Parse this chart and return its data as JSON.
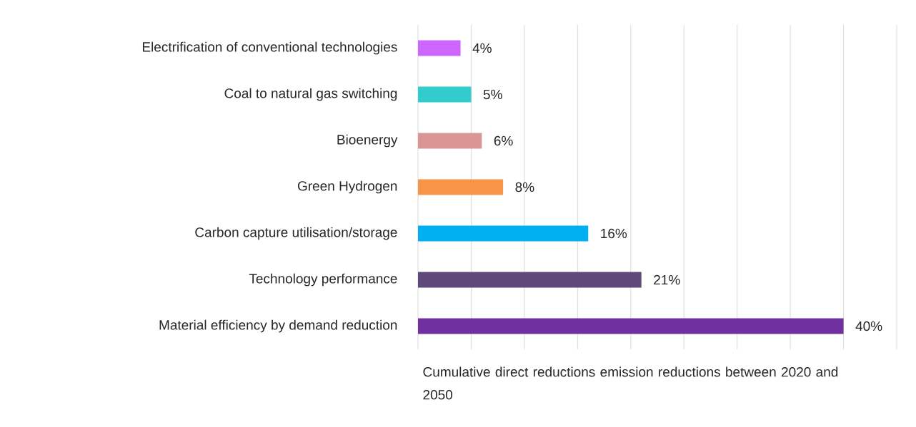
{
  "chart_data": {
    "type": "bar",
    "orientation": "horizontal",
    "categories": [
      "Electrification of conventional technologies",
      "Coal to natural gas switching",
      "Bioenergy",
      "Green Hydrogen",
      "Carbon capture utilisation/storage",
      "Technology performance",
      "Material efficiency by demand reduction"
    ],
    "values": [
      4,
      5,
      6,
      8,
      16,
      21,
      40
    ],
    "value_labels": [
      "4%",
      "5%",
      "6%",
      "8%",
      "16%",
      "21%",
      "40%"
    ],
    "colors": [
      "#cc66ff",
      "#33cccc",
      "#d99694",
      "#f79646",
      "#00b0f0",
      "#5f497a",
      "#7030a0"
    ],
    "xlabel": "Cumulative direct reductions emission reductions between 2020 and 2050",
    "xlim": [
      0,
      45
    ],
    "xticks": [
      {
        "value": 0,
        "label": null
      },
      {
        "value": 5,
        "label": null
      },
      {
        "value": 10,
        "label": null
      },
      {
        "value": 15,
        "label": null
      },
      {
        "value": 20,
        "label": null
      },
      {
        "value": 25,
        "label": null
      },
      {
        "value": 30,
        "label": null
      },
      {
        "value": 35,
        "label": null
      },
      {
        "value": 40,
        "label": null
      },
      {
        "value": 45,
        "label": null
      }
    ],
    "grid": "x",
    "tick_labels": "y"
  }
}
